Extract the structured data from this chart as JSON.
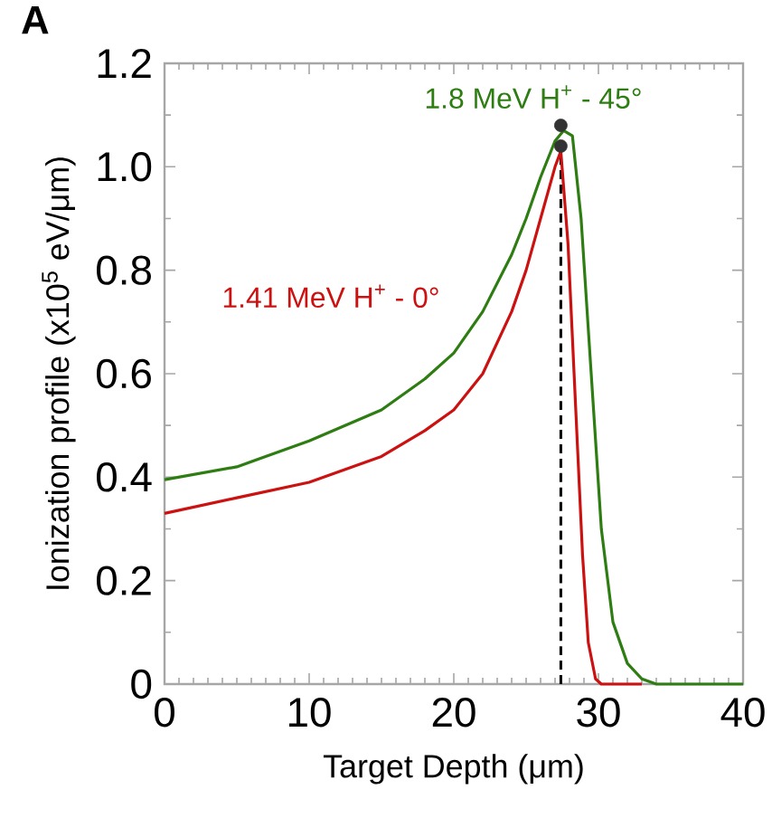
{
  "chart_data": {
    "type": "line",
    "xlabel": "Target Depth (μm)",
    "ylabel": "Ionization profile (x10$^{5}$ eV/μm)",
    "annotations": [
      "A"
    ],
    "xlim": [
      0,
      40
    ],
    "ylim": [
      0,
      1.2
    ],
    "xticks": [
      0,
      10,
      20,
      30,
      40
    ],
    "yticks": [
      0,
      {
        "value": 0.2,
        "label": "0.2"
      },
      {
        "value": 0.4,
        "label": "0.4"
      },
      {
        "value": 0.6,
        "label": "0.6"
      },
      {
        "value": 0.8,
        "label": "0.8"
      },
      {
        "value": 1.0,
        "label": "1.0"
      },
      {
        "value": 1.2,
        "label": "1.2"
      }
    ],
    "grid": false,
    "ref_lines": [
      {
        "axis": "x",
        "value": 27.4,
        "color": "#000000",
        "line_style": "dashed"
      }
    ],
    "series": [
      {
        "name": "1.8 MeV H$^{+}$ - 45°",
        "color": "#2e7d12",
        "x": [
          0,
          5,
          10,
          15,
          18,
          20,
          22,
          24,
          25,
          26,
          27,
          27.6,
          28.2,
          28.8,
          29.5,
          30.2,
          31,
          32,
          33,
          34,
          40
        ],
        "values": [
          0.395,
          0.42,
          0.47,
          0.53,
          0.59,
          0.64,
          0.72,
          0.83,
          0.9,
          0.98,
          1.05,
          1.07,
          1.06,
          0.9,
          0.6,
          0.3,
          0.12,
          0.04,
          0.01,
          0,
          0
        ]
      },
      {
        "name": "1.41 MeV H$^{+}$ - 0°",
        "color": "#cc1111",
        "x": [
          0,
          5,
          10,
          15,
          18,
          20,
          22,
          24,
          25,
          26,
          27,
          27.4,
          27.9,
          28.4,
          28.9,
          29.3,
          29.8,
          30.2,
          33
        ],
        "values": [
          0.33,
          0.36,
          0.39,
          0.44,
          0.49,
          0.53,
          0.6,
          0.72,
          0.8,
          0.9,
          1.0,
          1.03,
          0.85,
          0.55,
          0.25,
          0.08,
          0.01,
          0,
          0
        ]
      },
      {
        "type": "scatter",
        "marker": "circle",
        "color": "#333333",
        "x": [
          27.4,
          27.4
        ],
        "values": [
          1.08,
          1.04
        ]
      }
    ]
  }
}
